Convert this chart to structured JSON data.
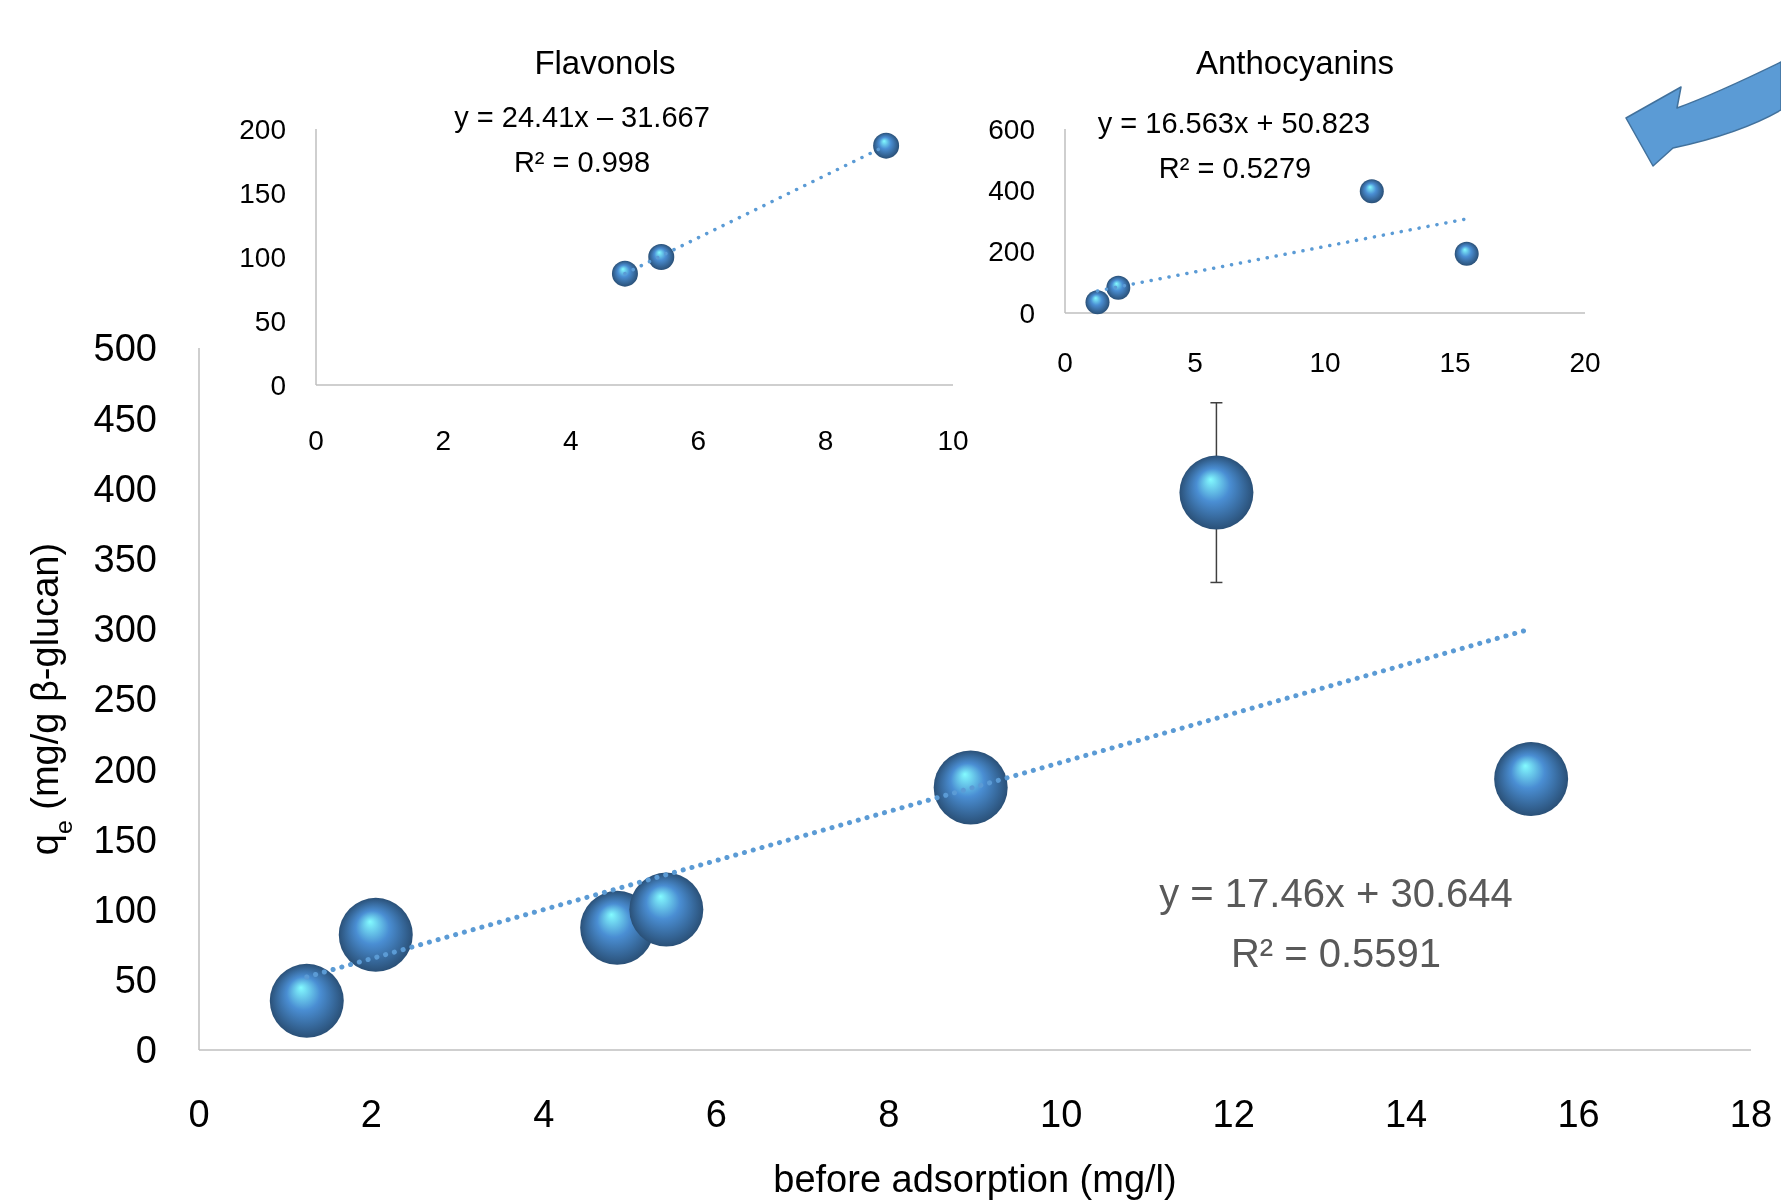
{
  "chart_data": [
    {
      "type": "scatter",
      "title": "Flavonols",
      "xlim": [
        0,
        10
      ],
      "ylim": [
        0,
        200
      ],
      "xticks": [
        0,
        2,
        4,
        6,
        8,
        10
      ],
      "yticks": [
        0,
        50,
        100,
        150,
        200
      ],
      "annotations": [
        "y = 24.41x – 31.667",
        "R² = 0.998"
      ],
      "series": [
        {
          "marker": "circle",
          "color": "#4a8ed3",
          "x": [
            4.85,
            5.42,
            8.95
          ],
          "values": [
            87,
            100,
            187
          ]
        },
        {
          "type": "line",
          "line_style": "dotted",
          "color": "#5b9bd5",
          "x": [
            4.85,
            8.95
          ],
          "values": [
            87,
            187
          ]
        }
      ]
    },
    {
      "type": "scatter",
      "title": "Anthocyanins",
      "xlim": [
        0,
        20
      ],
      "ylim": [
        0,
        600
      ],
      "xticks": [
        0,
        5,
        10,
        15,
        20
      ],
      "yticks": [
        0,
        200,
        400,
        600
      ],
      "annotations": [
        "y = 16.563x + 50.823",
        "R² = 0.5279"
      ],
      "series": [
        {
          "marker": "circle",
          "color": "#4a8ed3",
          "x": [
            1.25,
            2.05,
            11.8,
            15.45
          ],
          "values": [
            35,
            82,
            397,
            193
          ]
        },
        {
          "type": "line",
          "line_style": "dotted",
          "color": "#5b9bd5",
          "x": [
            1.25,
            15.45
          ],
          "values": [
            72,
            307
          ]
        }
      ]
    },
    {
      "type": "scatter",
      "xlabel": "before adsorption (mg/l)",
      "ylabel": "q$_{e}$ (mg/g β-glucan)",
      "xlim": [
        0,
        18
      ],
      "ylim": [
        0,
        500
      ],
      "xticks": [
        0,
        2,
        4,
        6,
        8,
        10,
        12,
        14,
        16,
        18
      ],
      "yticks": [
        0,
        50,
        100,
        150,
        200,
        250,
        300,
        350,
        400,
        450,
        500
      ],
      "annotations": [
        "y = 17.46x + 30.644",
        "R² = 0.5591"
      ],
      "series": [
        {
          "marker": "circle",
          "color": "#4a8ed3",
          "x": [
            1.25,
            2.05,
            4.85,
            5.42,
            8.95,
            11.8,
            15.45
          ],
          "values": [
            35,
            82,
            87,
            100,
            187,
            397,
            193
          ],
          "errors": [
            null,
            null,
            null,
            null,
            null,
            64,
            null
          ]
        },
        {
          "type": "line",
          "line_style": "dotted",
          "color": "#5b9bd5",
          "x": [
            1.25,
            15.45
          ],
          "values": [
            52,
            300
          ]
        }
      ]
    }
  ]
}
